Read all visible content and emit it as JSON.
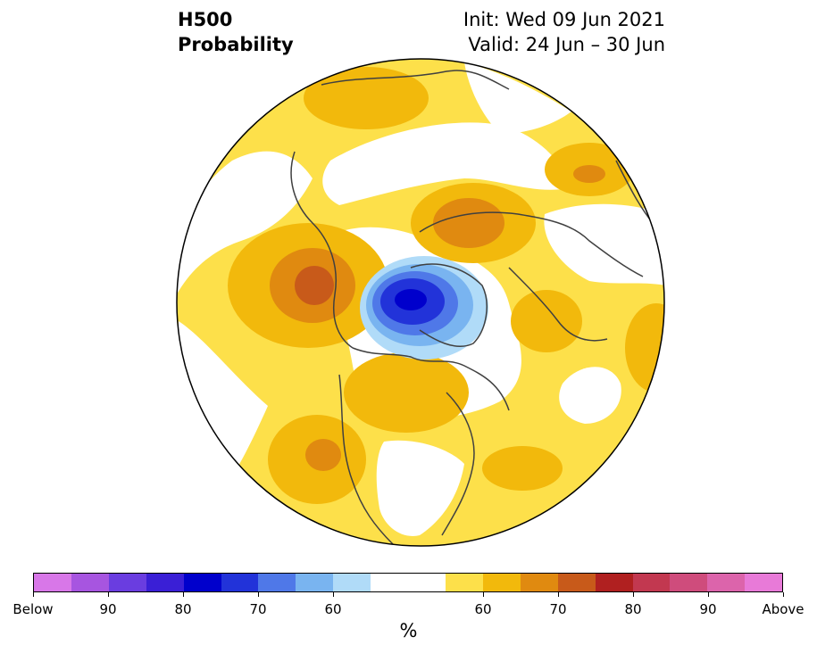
{
  "title": {
    "left_line1": "H500",
    "left_line2": "Probability",
    "right_line1": "Init: Wed 09 Jun 2021",
    "right_line2": "Valid: 24 Jun – 30 Jun"
  },
  "colorbar": {
    "colors": [
      "#d877e8",
      "#a755e0",
      "#6a3de0",
      "#3a1fd6",
      "#0000cc",
      "#2233d9",
      "#4f78e8",
      "#79b4f0",
      "#b0dbf8",
      "#ffffff",
      "#ffffff",
      "#fde04a",
      "#f2b90c",
      "#e08a10",
      "#c85a1a",
      "#b02020",
      "#c23850",
      "#cf4c7c",
      "#dc64ab",
      "#e87ad8"
    ],
    "labels": [
      "Below",
      "90",
      "80",
      "70",
      "60",
      "60",
      "70",
      "80",
      "90",
      "Above"
    ],
    "units": "%"
  },
  "map": {
    "colors": {
      "yellow": "#fde04a",
      "gold": "#f2b90c",
      "orange": "#e08a10",
      "dark_orange": "#c85a1a",
      "light_blue": "#b0dbf8",
      "mid_blue": "#79b4f0",
      "blue": "#4f78e8",
      "royal_blue": "#2233d9",
      "deep_blue": "#0000cc"
    }
  }
}
